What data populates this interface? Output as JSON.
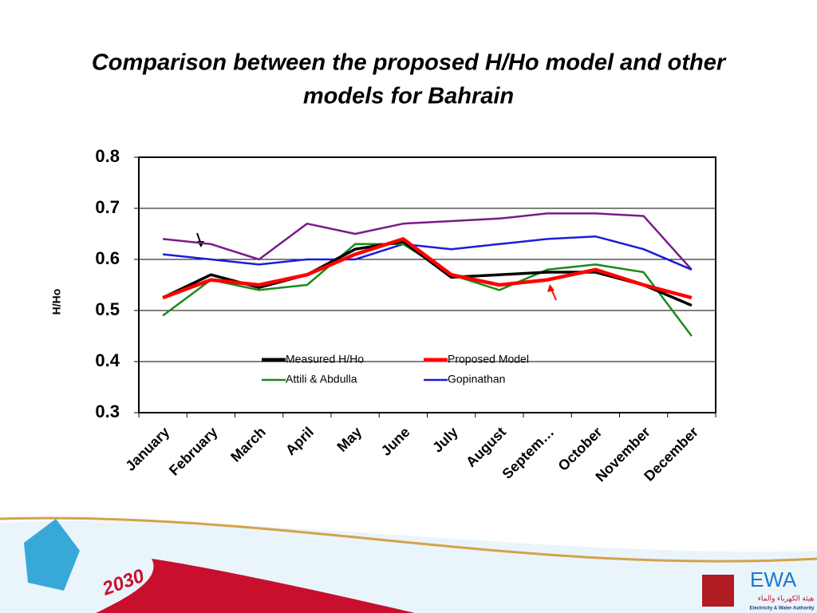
{
  "chart_data": {
    "type": "line",
    "title": "Comparison between the proposed H/Ho model and other models for Bahrain",
    "y_label": "H/Ho",
    "categories": [
      "January",
      "February",
      "March",
      "April",
      "May",
      "June",
      "July",
      "August",
      "Septem…",
      "October",
      "November",
      "December"
    ],
    "series": [
      {
        "name": "Measured H/Ho",
        "color": "#000000",
        "values": [
          0.525,
          0.57,
          0.545,
          0.57,
          0.62,
          0.635,
          0.565,
          0.57,
          0.575,
          0.575,
          0.55,
          0.51
        ]
      },
      {
        "name": "Proposed Model",
        "color": "#ff0000",
        "values": [
          0.525,
          0.56,
          0.55,
          0.57,
          0.61,
          0.64,
          0.57,
          0.55,
          0.56,
          0.58,
          0.55,
          0.525
        ]
      },
      {
        "name": "Attili & Abdulla",
        "color": "#1a8a1a",
        "values": [
          0.49,
          0.56,
          0.54,
          0.55,
          0.63,
          0.63,
          0.57,
          0.54,
          0.58,
          0.59,
          0.575,
          0.45
        ]
      },
      {
        "name": "Gopinathan",
        "color": "#1c1cdc",
        "values": [
          0.61,
          0.6,
          0.59,
          0.6,
          0.6,
          0.63,
          0.62,
          0.63,
          0.64,
          0.645,
          0.62,
          0.58
        ]
      },
      {
        "color": "#7a1a8a",
        "values": [
          0.64,
          0.63,
          0.6,
          0.67,
          0.65,
          0.67,
          0.675,
          0.68,
          0.69,
          0.69,
          0.685,
          0.58
        ]
      }
    ],
    "ylim": [
      0.3,
      0.8
    ],
    "yticks": [
      0.3,
      0.4,
      0.5,
      0.6,
      0.7,
      0.8
    ],
    "grid": true
  },
  "footer": {
    "year": "2030",
    "logo": "EWA",
    "logo_arabic": "هيئة الكهرباء والماء",
    "logo_subtitle": "Electricity & Water Authority"
  }
}
